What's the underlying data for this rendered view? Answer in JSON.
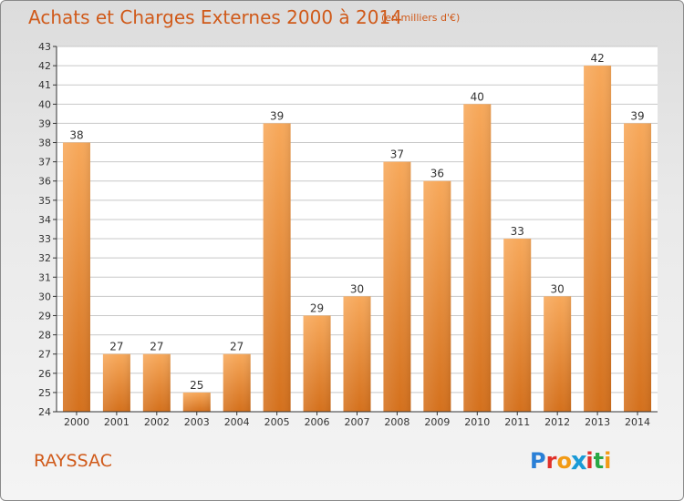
{
  "title": "Achats et Charges Externes 2000 à 2014",
  "unit": "(en milliers d'€)",
  "commune": "RAYSSAC",
  "logo": {
    "text": "Proxiti",
    "letter_colors": [
      "#2a7fd6",
      "#e0302a",
      "#f29a14",
      "#1a9ad6",
      "#e0302a",
      "#2aa845",
      "#f29a14"
    ]
  },
  "colors": {
    "title": "#d05a1a",
    "bar_top": "#f7a85a",
    "bar_bottom": "#d4701c",
    "grid": "#c8c8c8",
    "axis": "#333333"
  },
  "chart_data": {
    "type": "bar",
    "categories": [
      "2000",
      "2001",
      "2002",
      "2003",
      "2004",
      "2005",
      "2006",
      "2007",
      "2008",
      "2009",
      "2010",
      "2011",
      "2012",
      "2013",
      "2014"
    ],
    "values": [
      38,
      27,
      27,
      25,
      27,
      39,
      29,
      30,
      37,
      36,
      40,
      33,
      30,
      42,
      39
    ],
    "title": "Achats et Charges Externes 2000 à 2014",
    "xlabel": "",
    "ylabel": "",
    "ylim": [
      24,
      43
    ],
    "yticks": [
      24,
      25,
      26,
      27,
      28,
      29,
      30,
      31,
      32,
      33,
      34,
      35,
      36,
      37,
      38,
      39,
      40,
      41,
      42,
      43
    ],
    "grid": true,
    "data_labels": true
  }
}
